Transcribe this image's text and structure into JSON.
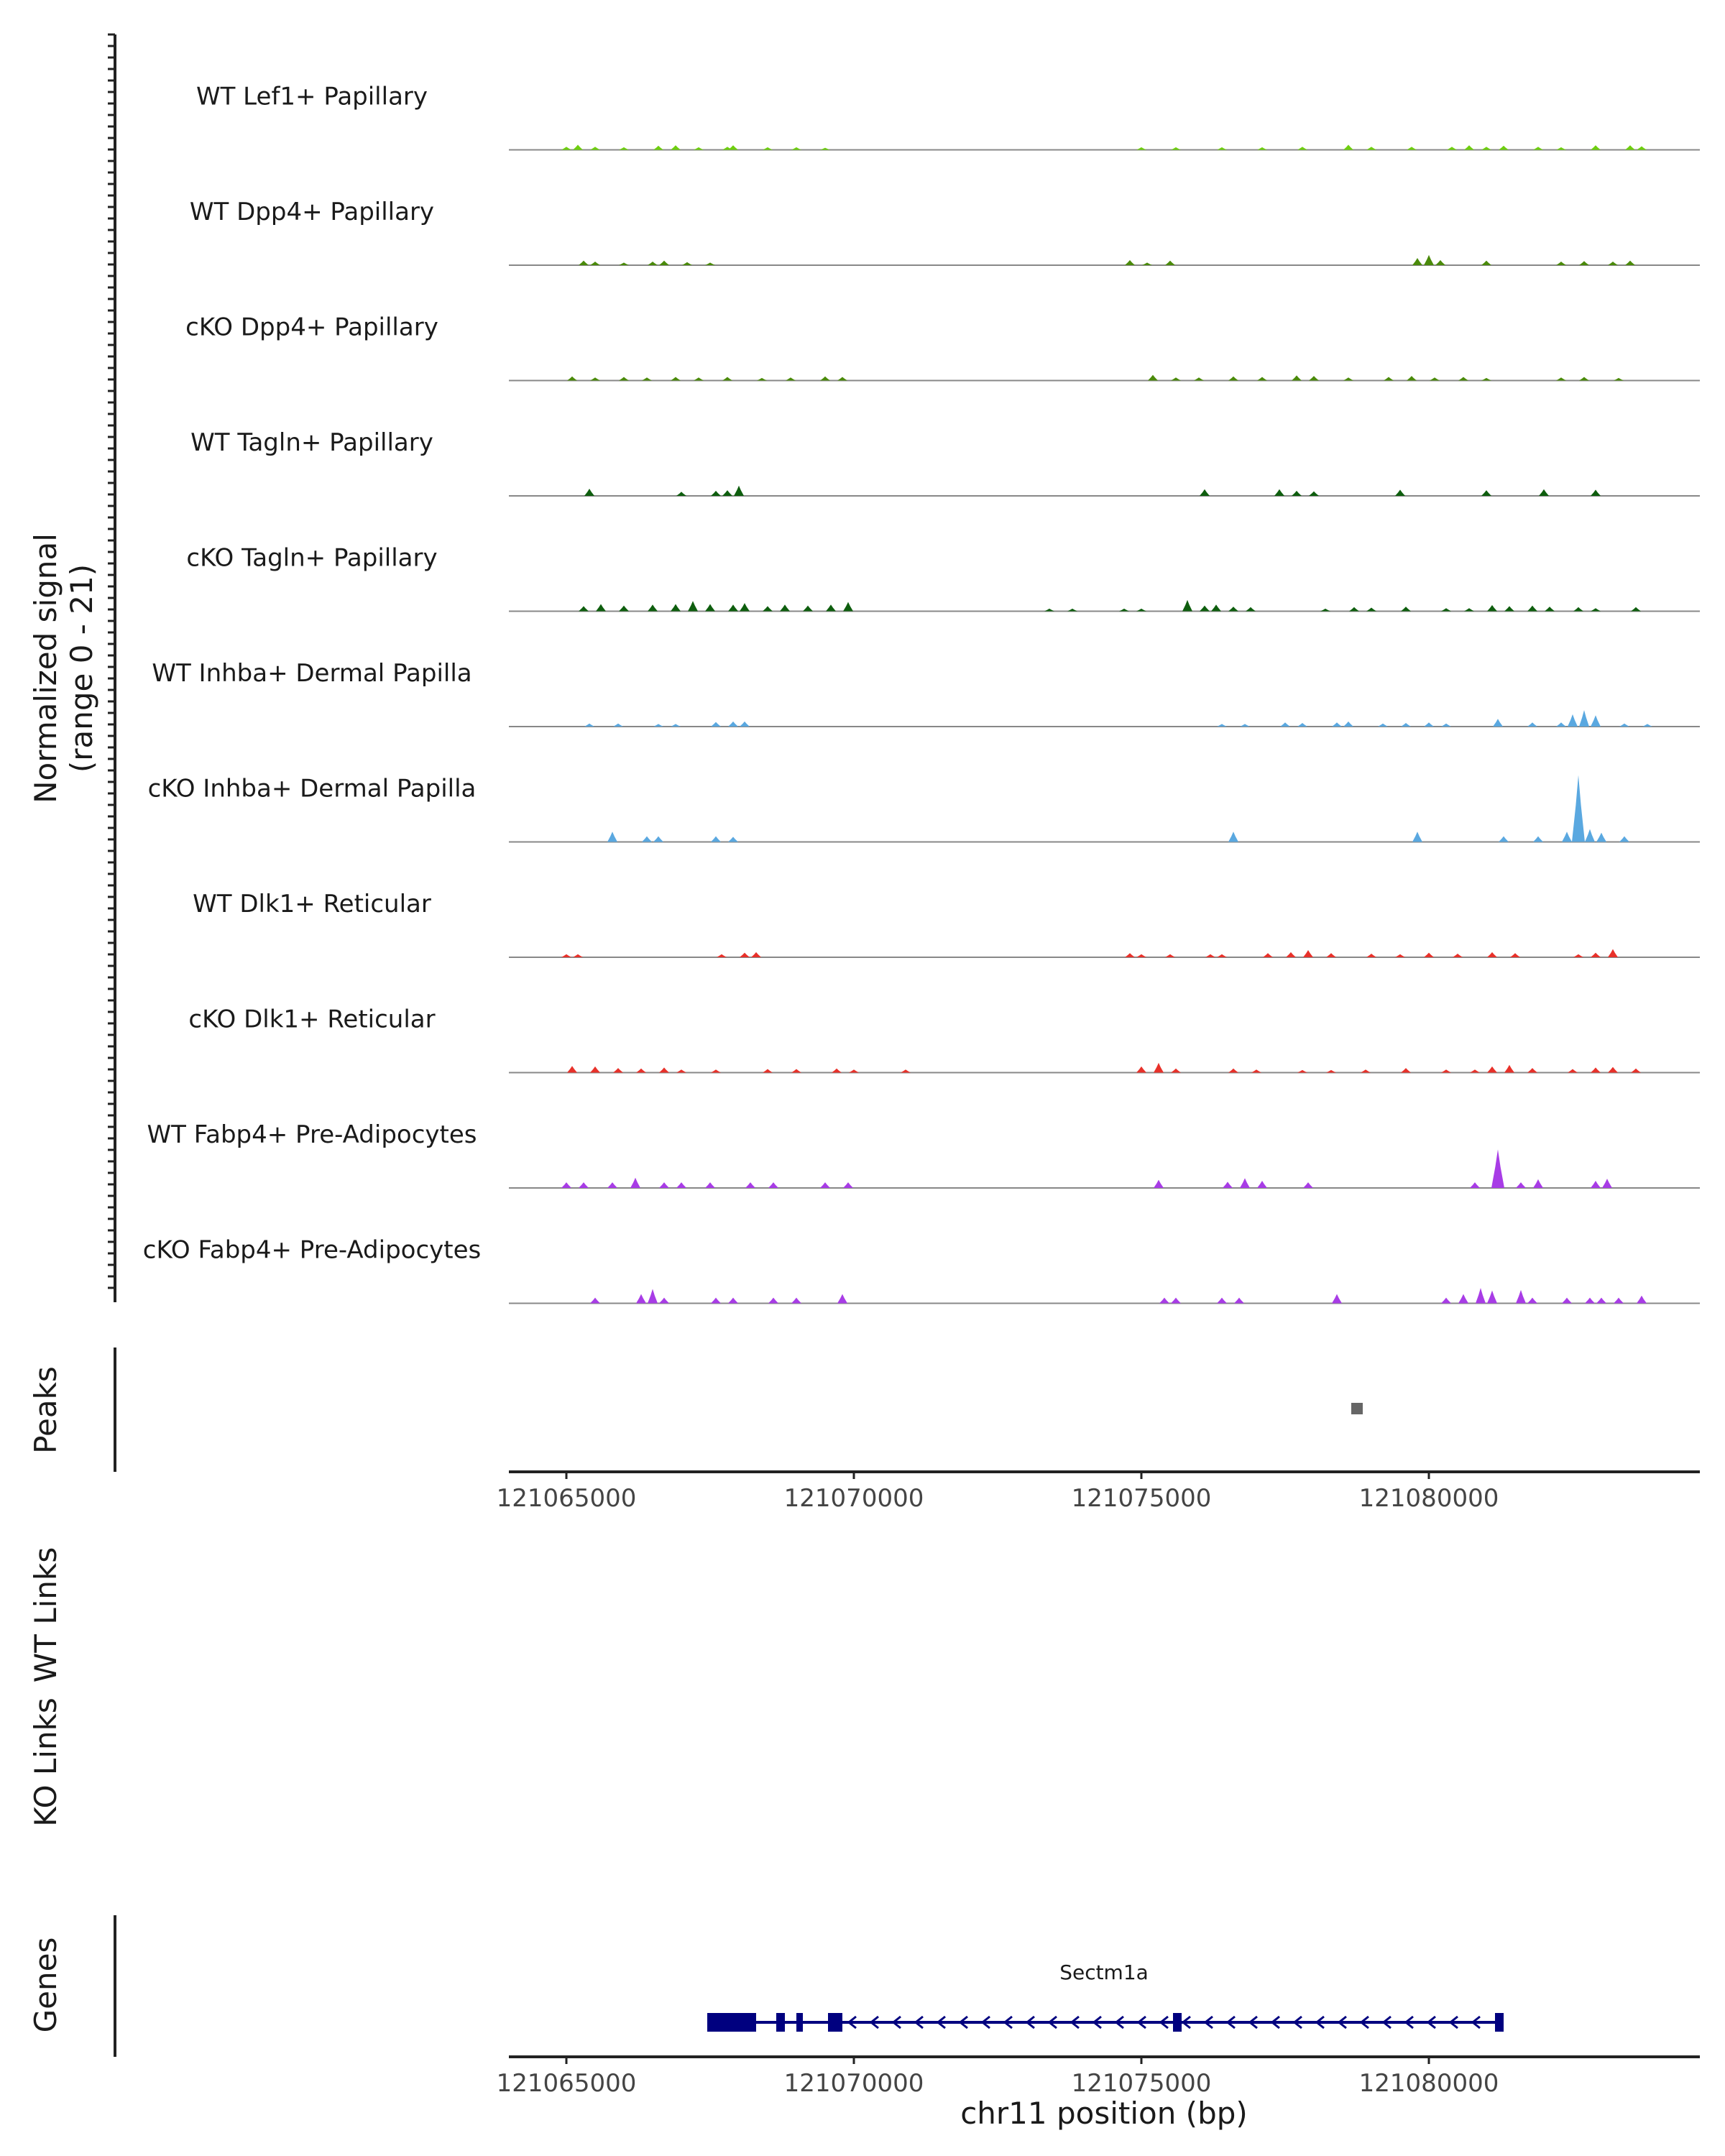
{
  "chart_data": {
    "type": "area",
    "title": "",
    "ylabel_lines": [
      "Normalized signal",
      "(range 0 - 21)"
    ],
    "ylim": [
      0,
      21
    ],
    "xlabel": "chr11 position (bp)",
    "xlim": [
      121064000,
      121085500
    ],
    "x_ticks": [
      121065000,
      121070000,
      121075000,
      121080000
    ],
    "colors": {
      "lime": "#6ecf0e",
      "olive_green": "#4a8a0a",
      "dark_green": "#0e5e0e",
      "blue": "#5aa8e0",
      "red": "#e8312a",
      "purple": "#a83ce6",
      "gene_navy": "#00007f",
      "peak_gray": "#666666",
      "baseline": "#888888"
    },
    "tracks": [
      {
        "label": "WT Lef1+ Papillary",
        "color": "#6ecf0e",
        "peaks": [
          [
            121065000,
            0.6
          ],
          [
            121065200,
            1.0
          ],
          [
            121065500,
            0.6
          ],
          [
            121066000,
            0.5
          ],
          [
            121066600,
            0.8
          ],
          [
            121066900,
            0.9
          ],
          [
            121067300,
            0.5
          ],
          [
            121067800,
            0.6
          ],
          [
            121067900,
            0.9
          ],
          [
            121068500,
            0.5
          ],
          [
            121069000,
            0.5
          ],
          [
            121069500,
            0.4
          ],
          [
            121075000,
            0.5
          ],
          [
            121075600,
            0.5
          ],
          [
            121076400,
            0.5
          ],
          [
            121077100,
            0.5
          ],
          [
            121077800,
            0.6
          ],
          [
            121078600,
            1.0
          ],
          [
            121079000,
            0.6
          ],
          [
            121079700,
            0.6
          ],
          [
            121080400,
            0.6
          ],
          [
            121080700,
            0.9
          ],
          [
            121081000,
            0.6
          ],
          [
            121081300,
            0.8
          ],
          [
            121081900,
            0.6
          ],
          [
            121082300,
            0.5
          ],
          [
            121082900,
            0.9
          ],
          [
            121083500,
            0.9
          ],
          [
            121083700,
            0.7
          ]
        ]
      },
      {
        "label": "WT Dpp4+ Papillary",
        "color": "#4a8a0a",
        "peaks": [
          [
            121065300,
            0.9
          ],
          [
            121065500,
            0.7
          ],
          [
            121066000,
            0.5
          ],
          [
            121066500,
            0.7
          ],
          [
            121066700,
            0.9
          ],
          [
            121067100,
            0.6
          ],
          [
            121067500,
            0.5
          ],
          [
            121074800,
            1.0
          ],
          [
            121075100,
            0.5
          ],
          [
            121075500,
            0.9
          ],
          [
            121079800,
            1.4
          ],
          [
            121080000,
            2.0
          ],
          [
            121080200,
            1.0
          ],
          [
            121081000,
            0.9
          ],
          [
            121082300,
            0.7
          ],
          [
            121082700,
            0.8
          ],
          [
            121083200,
            0.7
          ],
          [
            121083500,
            0.9
          ]
        ]
      },
      {
        "label": "cKO Dpp4+ Papillary",
        "color": "#4a8a0a",
        "peaks": [
          [
            121065100,
            0.8
          ],
          [
            121065500,
            0.6
          ],
          [
            121066000,
            0.7
          ],
          [
            121066400,
            0.6
          ],
          [
            121066900,
            0.7
          ],
          [
            121067300,
            0.6
          ],
          [
            121067800,
            0.7
          ],
          [
            121068400,
            0.5
          ],
          [
            121068900,
            0.6
          ],
          [
            121069500,
            0.8
          ],
          [
            121069800,
            0.7
          ],
          [
            121075200,
            1.1
          ],
          [
            121075600,
            0.6
          ],
          [
            121076000,
            0.6
          ],
          [
            121076600,
            0.8
          ],
          [
            121077100,
            0.7
          ],
          [
            121077700,
            1.0
          ],
          [
            121078000,
            0.9
          ],
          [
            121078600,
            0.6
          ],
          [
            121079300,
            0.7
          ],
          [
            121079700,
            0.9
          ],
          [
            121080100,
            0.6
          ],
          [
            121080600,
            0.7
          ],
          [
            121081000,
            0.5
          ],
          [
            121082300,
            0.6
          ],
          [
            121082700,
            0.7
          ],
          [
            121083300,
            0.5
          ]
        ]
      },
      {
        "label": "WT Tagln+ Papillary",
        "color": "#0e5e0e",
        "peaks": [
          [
            121065400,
            1.4
          ],
          [
            121067000,
            0.8
          ],
          [
            121067600,
            1.0
          ],
          [
            121067800,
            1.1
          ],
          [
            121068000,
            2.0
          ],
          [
            121076100,
            1.3
          ],
          [
            121077400,
            1.3
          ],
          [
            121077700,
            1.0
          ],
          [
            121078000,
            0.9
          ],
          [
            121079500,
            1.2
          ],
          [
            121081000,
            1.1
          ],
          [
            121082000,
            1.3
          ],
          [
            121082900,
            1.2
          ]
        ]
      },
      {
        "label": "cKO Tagln+ Papillary",
        "color": "#0e5e0e",
        "peaks": [
          [
            121065300,
            1.0
          ],
          [
            121065600,
            1.4
          ],
          [
            121066000,
            1.1
          ],
          [
            121066500,
            1.3
          ],
          [
            121066900,
            1.4
          ],
          [
            121067200,
            2.0
          ],
          [
            121067500,
            1.4
          ],
          [
            121067900,
            1.3
          ],
          [
            121068100,
            1.6
          ],
          [
            121068500,
            1.0
          ],
          [
            121068800,
            1.3
          ],
          [
            121069200,
            1.1
          ],
          [
            121069600,
            1.3
          ],
          [
            121069900,
            1.8
          ],
          [
            121073400,
            0.5
          ],
          [
            121073800,
            0.5
          ],
          [
            121074700,
            0.5
          ],
          [
            121075000,
            0.5
          ],
          [
            121075800,
            2.2
          ],
          [
            121076100,
            1.1
          ],
          [
            121076300,
            1.3
          ],
          [
            121076600,
            0.9
          ],
          [
            121076900,
            0.8
          ],
          [
            121078200,
            0.5
          ],
          [
            121078700,
            0.8
          ],
          [
            121079000,
            0.7
          ],
          [
            121079600,
            0.9
          ],
          [
            121080300,
            0.6
          ],
          [
            121080700,
            0.6
          ],
          [
            121081100,
            1.2
          ],
          [
            121081400,
            1.0
          ],
          [
            121081800,
            1.1
          ],
          [
            121082100,
            0.9
          ],
          [
            121082600,
            0.8
          ],
          [
            121082900,
            0.6
          ],
          [
            121083600,
            0.8
          ]
        ]
      },
      {
        "label": "WT Inhba+ Dermal Papilla",
        "color": "#5aa8e0",
        "peaks": [
          [
            121065400,
            0.6
          ],
          [
            121065900,
            0.6
          ],
          [
            121066600,
            0.5
          ],
          [
            121066900,
            0.5
          ],
          [
            121067600,
            0.9
          ],
          [
            121067900,
            1.0
          ],
          [
            121068100,
            1.0
          ],
          [
            121076400,
            0.5
          ],
          [
            121076800,
            0.5
          ],
          [
            121077500,
            0.8
          ],
          [
            121077800,
            0.7
          ],
          [
            121078400,
            0.8
          ],
          [
            121078600,
            1.0
          ],
          [
            121079200,
            0.6
          ],
          [
            121079600,
            0.7
          ],
          [
            121080000,
            0.8
          ],
          [
            121080300,
            0.6
          ],
          [
            121081200,
            1.5
          ],
          [
            121081800,
            0.8
          ],
          [
            121082300,
            0.8
          ],
          [
            121082500,
            2.4
          ],
          [
            121082700,
            3.2
          ],
          [
            121082900,
            2.2
          ],
          [
            121083400,
            0.6
          ],
          [
            121083800,
            0.5
          ]
        ]
      },
      {
        "label": "cKO Inhba+ Dermal Papilla",
        "color": "#5aa8e0",
        "peaks": [
          [
            121065800,
            2.0
          ],
          [
            121066400,
            1.1
          ],
          [
            121066600,
            1.1
          ],
          [
            121067600,
            1.1
          ],
          [
            121067900,
            1.0
          ],
          [
            121076600,
            2.0
          ],
          [
            121079800,
            2.0
          ],
          [
            121081300,
            1.1
          ],
          [
            121081900,
            1.1
          ],
          [
            121082400,
            2.0
          ],
          [
            121082600,
            13.0
          ],
          [
            121082800,
            2.5
          ],
          [
            121083000,
            1.8
          ],
          [
            121083400,
            1.1
          ]
        ]
      },
      {
        "label": "WT Dlk1+ Reticular",
        "color": "#e8312a",
        "peaks": [
          [
            121065000,
            0.6
          ],
          [
            121065200,
            0.6
          ],
          [
            121067700,
            0.6
          ],
          [
            121068100,
            0.9
          ],
          [
            121068300,
            1.0
          ],
          [
            121074800,
            0.8
          ],
          [
            121075000,
            0.6
          ],
          [
            121075500,
            0.6
          ],
          [
            121076200,
            0.6
          ],
          [
            121076400,
            0.6
          ],
          [
            121077200,
            0.8
          ],
          [
            121077600,
            1.0
          ],
          [
            121077900,
            1.4
          ],
          [
            121078300,
            0.8
          ],
          [
            121079000,
            0.7
          ],
          [
            121079500,
            0.6
          ],
          [
            121080000,
            0.9
          ],
          [
            121080500,
            0.7
          ],
          [
            121081100,
            1.0
          ],
          [
            121081500,
            0.8
          ],
          [
            121082600,
            0.6
          ],
          [
            121082900,
            0.9
          ],
          [
            121083200,
            1.6
          ]
        ]
      },
      {
        "label": "cKO Dlk1+ Reticular",
        "color": "#e8312a",
        "peaks": [
          [
            121065100,
            1.3
          ],
          [
            121065500,
            1.2
          ],
          [
            121065900,
            0.9
          ],
          [
            121066300,
            0.8
          ],
          [
            121066700,
            1.0
          ],
          [
            121067000,
            0.6
          ],
          [
            121067600,
            0.6
          ],
          [
            121068500,
            0.7
          ],
          [
            121069000,
            0.7
          ],
          [
            121069700,
            0.8
          ],
          [
            121070000,
            0.6
          ],
          [
            121070900,
            0.6
          ],
          [
            121075000,
            1.2
          ],
          [
            121075300,
            1.9
          ],
          [
            121075600,
            0.8
          ],
          [
            121076600,
            0.8
          ],
          [
            121077000,
            0.6
          ],
          [
            121077800,
            0.5
          ],
          [
            121078300,
            0.5
          ],
          [
            121078900,
            0.6
          ],
          [
            121079600,
            0.9
          ],
          [
            121080300,
            0.6
          ],
          [
            121080800,
            0.6
          ],
          [
            121081100,
            1.2
          ],
          [
            121081400,
            1.5
          ],
          [
            121081800,
            0.9
          ],
          [
            121082500,
            0.7
          ],
          [
            121082900,
            1.0
          ],
          [
            121083200,
            1.1
          ],
          [
            121083600,
            0.8
          ]
        ]
      },
      {
        "label": "WT Fabp4+ Pre-Adipocytes",
        "color": "#a83ce6",
        "peaks": [
          [
            121065000,
            1.1
          ],
          [
            121065300,
            1.1
          ],
          [
            121065800,
            1.1
          ],
          [
            121066200,
            2.0
          ],
          [
            121066700,
            1.1
          ],
          [
            121067000,
            1.1
          ],
          [
            121067500,
            1.1
          ],
          [
            121068200,
            1.1
          ],
          [
            121068600,
            1.1
          ],
          [
            121069500,
            1.1
          ],
          [
            121069900,
            1.1
          ],
          [
            121075300,
            1.6
          ],
          [
            121076500,
            1.2
          ],
          [
            121076800,
            1.9
          ],
          [
            121077100,
            1.4
          ],
          [
            121077900,
            1.1
          ],
          [
            121080800,
            1.1
          ],
          [
            121081200,
            7.5
          ],
          [
            121081600,
            1.1
          ],
          [
            121081900,
            1.7
          ],
          [
            121082900,
            1.4
          ],
          [
            121083100,
            1.8
          ]
        ]
      },
      {
        "label": "cKO Fabp4+ Pre-Adipocytes",
        "color": "#a83ce6",
        "peaks": [
          [
            121065500,
            1.1
          ],
          [
            121066300,
            1.8
          ],
          [
            121066500,
            2.8
          ],
          [
            121066700,
            1.1
          ],
          [
            121067600,
            1.1
          ],
          [
            121067900,
            1.1
          ],
          [
            121068600,
            1.1
          ],
          [
            121069000,
            1.1
          ],
          [
            121069800,
            1.8
          ],
          [
            121075400,
            1.1
          ],
          [
            121075600,
            1.1
          ],
          [
            121076400,
            1.1
          ],
          [
            121076700,
            1.1
          ],
          [
            121078400,
            1.8
          ],
          [
            121080300,
            1.1
          ],
          [
            121080600,
            1.8
          ],
          [
            121080900,
            3.0
          ],
          [
            121081100,
            2.5
          ],
          [
            121081600,
            2.6
          ],
          [
            121081800,
            1.1
          ],
          [
            121082400,
            1.1
          ],
          [
            121082800,
            1.1
          ],
          [
            121083000,
            1.1
          ],
          [
            121083300,
            1.1
          ],
          [
            121083700,
            1.5
          ]
        ]
      }
    ],
    "peaks_track": {
      "label": "Peaks",
      "regions": [
        [
          121078650,
          121078850
        ]
      ]
    },
    "links_tracks": [
      {
        "label": "WT Links",
        "links": []
      },
      {
        "label": "KO Links",
        "links": []
      }
    ],
    "genes_track": {
      "label": "Genes",
      "gene": "Sectm1a",
      "strand": "-",
      "start": 121067450,
      "end": 121081300,
      "exons": [
        [
          121067450,
          121068300
        ],
        [
          121068650,
          121068800
        ],
        [
          121069000,
          121069100
        ],
        [
          121069550,
          121069800
        ],
        [
          121075550,
          121075700
        ],
        [
          121081150,
          121081300
        ]
      ]
    }
  }
}
